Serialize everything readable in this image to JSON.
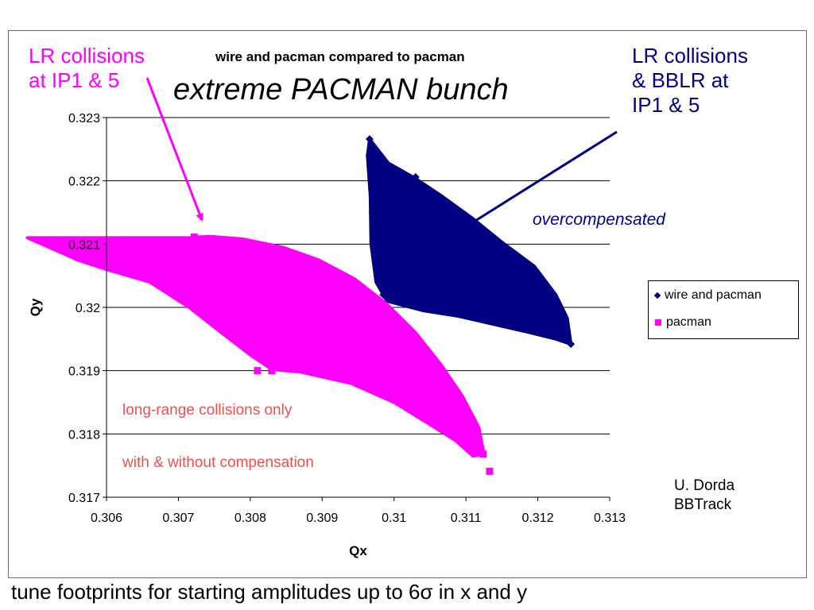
{
  "chart_data": {
    "type": "scatter",
    "title": "wire and pacman compared to pacman",
    "subtitle": "extreme PACMAN bunch",
    "xlabel": "Qx",
    "ylabel": "Qy",
    "xlim": [
      0.306,
      0.313
    ],
    "ylim": [
      0.317,
      0.323
    ],
    "x_ticks": [
      "0.306",
      "0.307",
      "0.308",
      "0.309",
      "0.31",
      "0.311",
      "0.312",
      "0.313"
    ],
    "y_ticks": [
      "0.317",
      "0.318",
      "0.319",
      "0.32",
      "0.321",
      "0.322",
      "0.323"
    ],
    "grid": "horizontal",
    "legend_position": "right",
    "series": [
      {
        "name": "wire and pacman",
        "color": "#000080",
        "marker": "diamond",
        "region_outline": [
          [
            0.30966,
            0.32266
          ],
          [
            0.30992,
            0.32228
          ],
          [
            0.31028,
            0.32205
          ],
          [
            0.31065,
            0.32177
          ],
          [
            0.3111,
            0.3214
          ],
          [
            0.3115,
            0.32103
          ],
          [
            0.31195,
            0.32065
          ],
          [
            0.31225,
            0.3202
          ],
          [
            0.31241,
            0.31983
          ],
          [
            0.31246,
            0.31942
          ],
          [
            0.31225,
            0.3195
          ],
          [
            0.3119,
            0.3196
          ],
          [
            0.3114,
            0.31973
          ],
          [
            0.3109,
            0.31986
          ],
          [
            0.3104,
            0.31995
          ],
          [
            0.3099,
            0.3201
          ],
          [
            0.30975,
            0.3204
          ],
          [
            0.30968,
            0.321
          ],
          [
            0.30967,
            0.32175
          ],
          [
            0.30963,
            0.3224
          ]
        ],
        "points": [
          [
            0.30966,
            0.32266
          ],
          [
            0.3103,
            0.32206
          ],
          [
            0.31138,
            0.32108
          ],
          [
            0.312,
            0.32
          ],
          [
            0.31246,
            0.31942
          ],
          [
            0.30985,
            0.3202
          ],
          [
            0.3097,
            0.3215
          ]
        ]
      },
      {
        "name": "pacman",
        "color": "#ff00ff",
        "marker": "square",
        "region_outline": [
          [
            0.30722,
            0.32111
          ],
          [
            0.30745,
            0.32112
          ],
          [
            0.3079,
            0.32108
          ],
          [
            0.30845,
            0.32095
          ],
          [
            0.30895,
            0.32075
          ],
          [
            0.30945,
            0.32045
          ],
          [
            0.3099,
            0.32005
          ],
          [
            0.3103,
            0.3196
          ],
          [
            0.31065,
            0.3191
          ],
          [
            0.31095,
            0.3186
          ],
          [
            0.31118,
            0.3181
          ],
          [
            0.31125,
            0.31768
          ],
          [
            0.3111,
            0.31765
          ],
          [
            0.31085,
            0.3179
          ],
          [
            0.3105,
            0.31815
          ],
          [
            0.31,
            0.3185
          ],
          [
            0.3094,
            0.3188
          ],
          [
            0.3087,
            0.31898
          ],
          [
            0.3083,
            0.31902
          ],
          [
            0.308,
            0.31925
          ],
          [
            0.3076,
            0.3196
          ],
          [
            0.30715,
            0.32
          ],
          [
            0.3066,
            0.3204
          ],
          [
            0.306,
            0.3206
          ],
          [
            0.3056,
            0.32075
          ],
          [
            0.3053,
            0.3209
          ],
          [
            0.3051,
            0.321
          ],
          [
            0.3049,
            0.3211
          ],
          [
            0.30723,
            0.3211
          ]
        ],
        "points": [
          [
            0.30722,
            0.32111
          ],
          [
            0.3081,
            0.319
          ],
          [
            0.31124,
            0.31768
          ],
          [
            0.31133,
            0.31741
          ],
          [
            0.3083,
            0.319
          ],
          [
            0.3102,
            0.3196
          ]
        ]
      }
    ]
  },
  "annotations": {
    "left_label_line1": "LR collisions",
    "left_label_line2": "at IP1 & 5",
    "right_label_line1": "LR collisions",
    "right_label_line2": "& BBLR at",
    "right_label_line3": "IP1 &  5",
    "overcompensated": "overcompensated",
    "lr_only": "long-range collisions only",
    "with_without": "with & without compensation",
    "credit_line1": "U. Dorda",
    "credit_line2": "BBTrack"
  },
  "caption": "tune footprints for starting amplitudes up to 6σ in x and y",
  "colors": {
    "wire_series": "#000080",
    "pacman_series": "#ff00ff",
    "annotation_red": "#e9524d"
  }
}
